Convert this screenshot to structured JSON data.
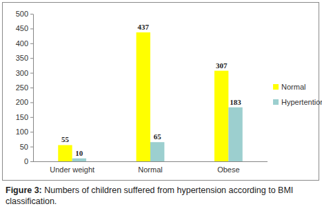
{
  "chart_data": {
    "type": "bar",
    "title": "Figure 3: Numbers of children suffered from hypertension according to BMI classification.",
    "categories": [
      "Under weight",
      "Normal",
      "Obese"
    ],
    "series": [
      {
        "name": "Normal",
        "color": "#FFFF00",
        "values": [
          55,
          437,
          307
        ]
      },
      {
        "name": "Hypertention",
        "color": "#9CCFCF",
        "values": [
          10,
          65,
          183
        ]
      }
    ],
    "ylim": [
      0,
      500
    ],
    "yticks": [
      0,
      50,
      100,
      150,
      200,
      250,
      300,
      350,
      400,
      450,
      500
    ],
    "grid": false,
    "legend": "right",
    "data_labels": true
  }
}
